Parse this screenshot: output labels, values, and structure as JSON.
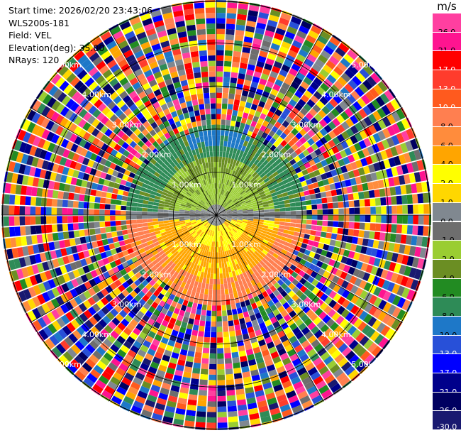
{
  "header": {
    "start_time": "Start time: 2026/02/20 23:43:06",
    "station": "WLS200s-181",
    "field": "Field: VEL",
    "elevation": "Elevation(deg): 35.00",
    "nrays": "NRays: 120"
  },
  "range_labels": [
    "1.00km",
    "2.00km",
    "3.00km",
    "4.00km",
    "5.00km"
  ],
  "colorbar": {
    "unit": "m/s",
    "levels": [
      {
        "label": "26.0",
        "color": "#ff3fa0",
        "text": "#000000"
      },
      {
        "label": "21.0",
        "color": "#ff1490",
        "text": "#000000"
      },
      {
        "label": "17.0",
        "color": "#ff0000",
        "text": "#ffffff"
      },
      {
        "label": "13.0",
        "color": "#ff3c2c",
        "text": "#ffffff"
      },
      {
        "label": "10.0",
        "color": "#ff5a1e",
        "text": "#ffffff"
      },
      {
        "label": "8.0",
        "color": "#ff7f50",
        "text": "#000000"
      },
      {
        "label": "6.0",
        "color": "#ff8c3c",
        "text": "#000000"
      },
      {
        "label": "4.0",
        "color": "#ffa500",
        "text": "#000000"
      },
      {
        "label": "2.0",
        "color": "#ffff00",
        "text": "#000000"
      },
      {
        "label": "1.0",
        "color": "#ffd700",
        "text": "#000000"
      },
      {
        "label": "0.0",
        "color": "#808890",
        "text": "#000000"
      },
      {
        "label": "-1.0",
        "color": "#6e6e6e",
        "text": "#000000"
      },
      {
        "label": "-2.0",
        "color": "#9acd32",
        "text": "#000000"
      },
      {
        "label": "-4.0",
        "color": "#6b8e23",
        "text": "#000000"
      },
      {
        "label": "-6.0",
        "color": "#228b22",
        "text": "#000000"
      },
      {
        "label": "-8.0",
        "color": "#2e8b57",
        "text": "#000000"
      },
      {
        "label": "-10.0",
        "color": "#1e78c8",
        "text": "#000000"
      },
      {
        "label": "-13.0",
        "color": "#2850d8",
        "text": "#ffffff"
      },
      {
        "label": "-17.0",
        "color": "#0000ff",
        "text": "#ffffff"
      },
      {
        "label": "-21.0",
        "color": "#00008b",
        "text": "#ffffff"
      },
      {
        "label": "-26.0",
        "color": "#000060",
        "text": "#ffffff"
      },
      {
        "label": "-30.0",
        "color": "#191970",
        "text": "#ffffff"
      }
    ]
  },
  "ppi": {
    "rays": 120,
    "max_range_km": 5.0,
    "inner_region": {
      "north_far_color": "#2e8b57",
      "north_mid_color": "#6b8e23",
      "north_near_color": "#9acd32",
      "north_patch_color": "#1e78c8",
      "center_color": "#808890",
      "center_dark_color": "#6e6e6e",
      "south_near_color": "#ffff00",
      "south_mid_color": "#ffa500",
      "south_far_color": "#ff7f50"
    },
    "ring_color": "#000000"
  }
}
